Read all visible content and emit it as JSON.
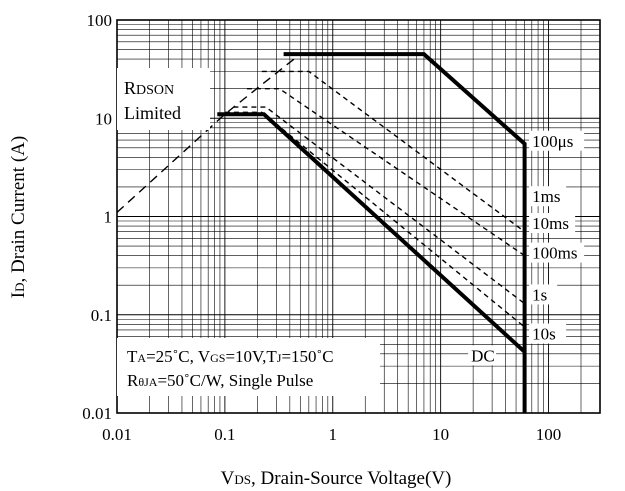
{
  "chart_data": {
    "type": "line",
    "title": "",
    "xlabel": "Vᴅₛ, Drain-Source Voltage(V)",
    "ylabel": "Iᴅ, Drain Current (A)",
    "xlabel_main": "V",
    "xlabel_sub": "DS",
    "xlabel_rest": ", Drain-Source Voltage(V)",
    "ylabel_main": "I",
    "ylabel_sub": "D",
    "ylabel_rest": ", Drain Current (A)",
    "xscale": "log",
    "yscale": "log",
    "xlim": [
      0.01,
      300
    ],
    "ylim": [
      0.01,
      100
    ],
    "grid": true,
    "x_ticks": [
      "0.01",
      "0.1",
      "1",
      "10",
      "100"
    ],
    "y_ticks": [
      "0.01",
      "0.1",
      "1",
      "10",
      "100"
    ],
    "annotations": {
      "rdson_line1_main": "R",
      "rdson_line1_sub": "DSON",
      "rdson_line2": "Limited",
      "cond_line1": "Tₐ=25˚C, Vɢₛ=10V,Tⱼ=150˚C",
      "cond_line1_parts": [
        "T",
        "A",
        "=25˚C, V",
        "GS",
        "=10V,T",
        "J",
        "=150˚C"
      ],
      "cond_line2_parts": [
        "R",
        "θJA",
        "=50˚C/W, Single Pulse"
      ]
    },
    "series": [
      {
        "name": "RDSON Limited",
        "style": "dashed",
        "points": [
          [
            0.01,
            1.1
          ],
          [
            0.1,
            11
          ],
          [
            0.22,
            22
          ],
          [
            0.5,
            45
          ],
          [
            7,
            45
          ]
        ]
      },
      {
        "name": "100μs",
        "style": "thick",
        "points": [
          [
            0.35,
            45
          ],
          [
            7,
            45
          ],
          [
            60,
            5.5
          ],
          [
            60,
            0.01
          ]
        ]
      },
      {
        "name": "1ms",
        "style": "dashed",
        "points": [
          [
            0.22,
            30
          ],
          [
            0.6,
            30
          ],
          [
            60,
            0.7
          ]
        ]
      },
      {
        "name": "10ms",
        "style": "dashed",
        "points": [
          [
            0.16,
            20
          ],
          [
            0.32,
            20
          ],
          [
            60,
            0.4
          ]
        ]
      },
      {
        "name": "100ms",
        "style": "dashed",
        "points": [
          [
            0.12,
            13
          ],
          [
            0.24,
            13
          ],
          [
            60,
            0.13
          ]
        ]
      },
      {
        "name": "1s",
        "style": "dashed",
        "points": [
          [
            0.1,
            11.5
          ],
          [
            0.22,
            11.5
          ],
          [
            60,
            0.075
          ]
        ]
      },
      {
        "name": "DC",
        "style": "thick",
        "points": [
          [
            0.085,
            11
          ],
          [
            0.23,
            11
          ],
          [
            60,
            0.042
          ]
        ]
      }
    ],
    "curve_labels": [
      {
        "text": "100μs",
        "x": 100,
        "y": 5.5
      },
      {
        "text": "1ms",
        "x": 100,
        "y": 1.5
      },
      {
        "text": "10ms",
        "x": 100,
        "y": 0.8
      },
      {
        "text": "100ms",
        "x": 100,
        "y": 0.4
      },
      {
        "text": "1s",
        "x": 100,
        "y": 0.15
      },
      {
        "text": "10s",
        "x": 100,
        "y": 0.06
      },
      {
        "text": "DC",
        "x": 32,
        "y": 0.036
      }
    ]
  }
}
